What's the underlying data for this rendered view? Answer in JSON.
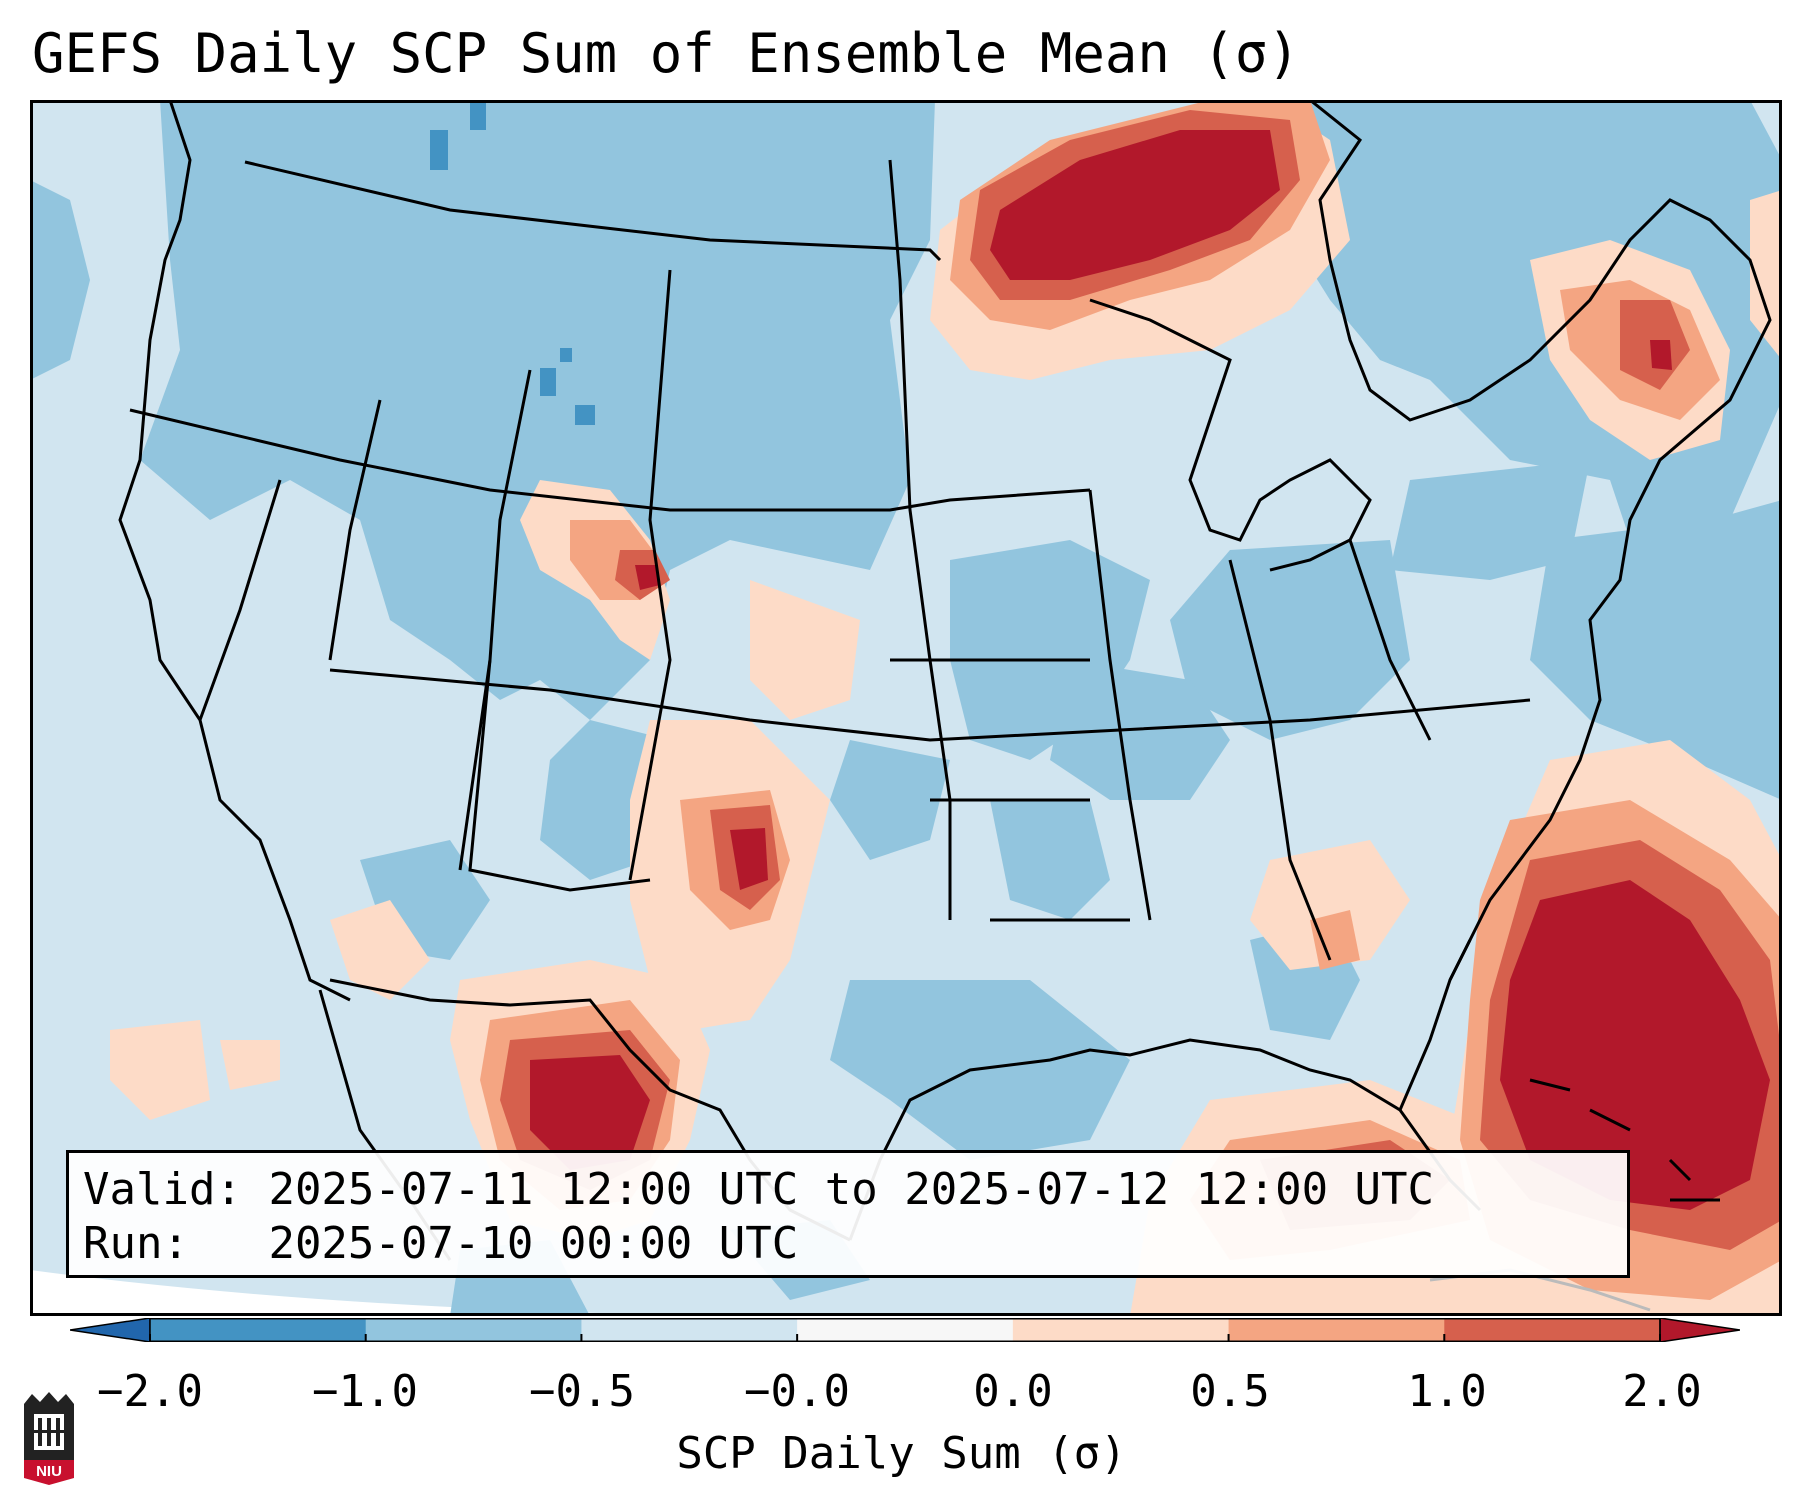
{
  "title": "GEFS Daily SCP Sum of Ensemble Mean (σ)",
  "info": {
    "valid_label": "Valid:",
    "valid_value": "2025-07-11 12:00 UTC to 2025-07-12 12:00 UTC",
    "run_label": "Run:",
    "run_value": "2025-07-10 00:00 UTC"
  },
  "colorbar": {
    "label": "SCP Daily Sum (σ)",
    "ticks": [
      "−2.0",
      "−1.0",
      "−0.5",
      "−0.0",
      "0.0",
      "0.5",
      "1.0",
      "2.0"
    ],
    "bins": [
      {
        "from": -2.0,
        "to": -1.0,
        "color": "#4393c3"
      },
      {
        "from": -1.0,
        "to": -0.5,
        "color": "#92c5de"
      },
      {
        "from": -0.5,
        "to": -0.0,
        "color": "#d1e5f0"
      },
      {
        "from": -0.0,
        "to": 0.0,
        "color": "#f7f7f7"
      },
      {
        "from": 0.0,
        "to": 0.5,
        "color": "#fddbc7"
      },
      {
        "from": 0.5,
        "to": 1.0,
        "color": "#f4a582"
      },
      {
        "from": 1.0,
        "to": 2.0,
        "color": "#d6604d"
      }
    ],
    "under_color": "#2166ac",
    "over_color": "#b2182b"
  },
  "map_colors": {
    "background": "#d1e5f0",
    "light_blue": "#92c5de",
    "mid_blue": "#4393c3",
    "pale_red": "#fddbc7",
    "salmon": "#f4a582",
    "red": "#d6604d",
    "dark_red": "#b2182b",
    "outside": "#ffffff"
  },
  "logo_text": "NIU"
}
